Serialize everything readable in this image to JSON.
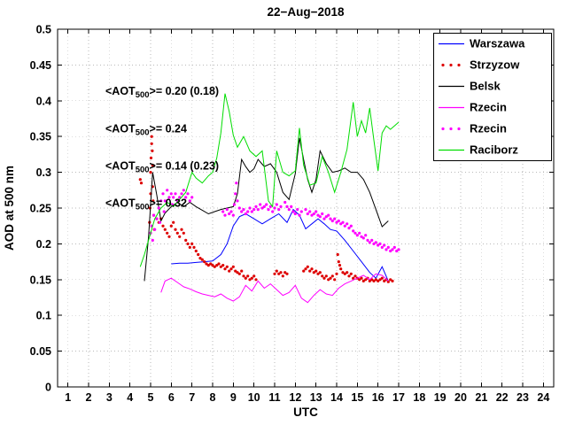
{
  "chart_data": {
    "type": "line",
    "title": "22−Aug−2018",
    "xlabel": "UTC",
    "ylabel": "AOD at 500 nm",
    "xlim": [
      0.5,
      24.5
    ],
    "ylim": [
      0,
      0.5
    ],
    "grid": true,
    "legend_position": "top-right",
    "xticks": [
      1,
      2,
      3,
      4,
      5,
      6,
      7,
      8,
      9,
      10,
      11,
      12,
      13,
      14,
      15,
      16,
      17,
      18,
      19,
      20,
      21,
      22,
      23,
      24
    ],
    "yticks": [
      0,
      0.05,
      0.1,
      0.15,
      0.2,
      0.25,
      0.3,
      0.35,
      0.4,
      0.45,
      0.5
    ],
    "ytick_labels": [
      "0",
      "0.05",
      "0.1",
      "0.15",
      "0.2",
      "0.25",
      "0.3",
      "0.35",
      "0.4",
      "0.45",
      "0.5"
    ],
    "series": [
      {
        "id": "warszawa",
        "name": "Warszawa",
        "mode": "line",
        "color": "#0000ff",
        "x": [
          6.0,
          6.4,
          6.8,
          7.2,
          7.6,
          8.0,
          8.4,
          8.7,
          9.0,
          9.3,
          9.6,
          10.0,
          10.4,
          10.8,
          11.2,
          11.6,
          11.9,
          12.2,
          12.5,
          12.8,
          13.1,
          13.4,
          13.7,
          14.0,
          14.4,
          14.8,
          15.2,
          15.6,
          15.9,
          16.2,
          16.5
        ],
        "y": [
          0.172,
          0.173,
          0.173,
          0.174,
          0.175,
          0.176,
          0.185,
          0.2,
          0.225,
          0.238,
          0.242,
          0.235,
          0.228,
          0.235,
          0.242,
          0.23,
          0.248,
          0.24,
          0.221,
          0.228,
          0.235,
          0.228,
          0.22,
          0.218,
          0.205,
          0.19,
          0.175,
          0.16,
          0.152,
          0.168,
          0.148
        ]
      },
      {
        "id": "strzyzow",
        "name": "Strzyzow",
        "mode": "scatter",
        "color": "#dd0000",
        "x": [
          4.5,
          4.55,
          4.95,
          4.97,
          5.0,
          5.0,
          5.02,
          5.05,
          5.05,
          5.08,
          5.1,
          5.1,
          5.12,
          5.15,
          5.18,
          5.3,
          5.4,
          5.5,
          5.6,
          5.7,
          5.8,
          5.9,
          6.0,
          6.1,
          6.2,
          6.3,
          6.4,
          6.5,
          6.6,
          6.7,
          6.8,
          6.9,
          7.0,
          7.1,
          7.2,
          7.3,
          7.4,
          7.5,
          7.6,
          7.7,
          7.8,
          7.9,
          8.0,
          8.1,
          8.2,
          8.3,
          8.4,
          8.5,
          8.6,
          8.7,
          8.8,
          8.9,
          9.0,
          9.1,
          9.2,
          9.3,
          9.4,
          9.5,
          9.6,
          9.7,
          9.8,
          9.9,
          10.0,
          10.1,
          11.0,
          11.1,
          11.2,
          11.3,
          11.4,
          11.5,
          11.6,
          12.4,
          12.5,
          12.6,
          12.7,
          12.8,
          12.9,
          13.0,
          13.1,
          13.2,
          13.3,
          13.4,
          13.5,
          13.6,
          13.7,
          13.8,
          13.9,
          14.0,
          14.05,
          14.1,
          14.15,
          14.2,
          14.3,
          14.4,
          14.5,
          14.6,
          14.7,
          14.8,
          14.9,
          15.0,
          15.1,
          15.2,
          15.3,
          15.4,
          15.5,
          15.6,
          15.7,
          15.8,
          15.9,
          16.0,
          16.1,
          16.2,
          16.3,
          16.4,
          16.5,
          16.6,
          16.7
        ],
        "y": [
          0.29,
          0.285,
          0.23,
          0.25,
          0.27,
          0.3,
          0.32,
          0.34,
          0.35,
          0.33,
          0.31,
          0.28,
          0.26,
          0.24,
          0.22,
          0.235,
          0.23,
          0.235,
          0.225,
          0.22,
          0.215,
          0.21,
          0.225,
          0.23,
          0.22,
          0.215,
          0.21,
          0.22,
          0.215,
          0.205,
          0.2,
          0.195,
          0.2,
          0.195,
          0.19,
          0.185,
          0.18,
          0.178,
          0.175,
          0.172,
          0.17,
          0.172,
          0.17,
          0.168,
          0.17,
          0.172,
          0.168,
          0.17,
          0.165,
          0.168,
          0.162,
          0.165,
          0.168,
          0.162,
          0.16,
          0.158,
          0.162,
          0.155,
          0.152,
          0.155,
          0.15,
          0.152,
          0.155,
          0.15,
          0.158,
          0.162,
          0.158,
          0.16,
          0.155,
          0.16,
          0.158,
          0.162,
          0.165,
          0.168,
          0.162,
          0.165,
          0.16,
          0.162,
          0.158,
          0.16,
          0.155,
          0.152,
          0.155,
          0.15,
          0.152,
          0.155,
          0.15,
          0.158,
          0.185,
          0.175,
          0.17,
          0.165,
          0.16,
          0.158,
          0.16,
          0.155,
          0.158,
          0.152,
          0.155,
          0.152,
          0.15,
          0.152,
          0.148,
          0.15,
          0.152,
          0.148,
          0.15,
          0.148,
          0.15,
          0.148,
          0.15,
          0.152,
          0.148,
          0.15,
          0.147,
          0.15,
          0.148
        ]
      },
      {
        "id": "belsk",
        "name": "Belsk",
        "mode": "line",
        "color": "#000000",
        "x": [
          4.7,
          4.9,
          5.1,
          5.3,
          5.5,
          5.7,
          6.0,
          6.3,
          6.6,
          6.9,
          7.2,
          7.5,
          7.8,
          8.1,
          8.4,
          8.7,
          9.0,
          9.2,
          9.4,
          9.6,
          9.8,
          10.0,
          10.2,
          10.5,
          10.8,
          11.1,
          11.4,
          11.7,
          12.0,
          12.2,
          12.4,
          12.6,
          12.8,
          13.0,
          13.2,
          13.5,
          13.8,
          14.1,
          14.4,
          14.7,
          15.0,
          15.3,
          15.6,
          15.9,
          16.2,
          16.5
        ],
        "y": [
          0.148,
          0.21,
          0.3,
          0.268,
          0.232,
          0.243,
          0.252,
          0.258,
          0.252,
          0.258,
          0.252,
          0.247,
          0.242,
          0.245,
          0.248,
          0.25,
          0.252,
          0.27,
          0.318,
          0.308,
          0.3,
          0.305,
          0.318,
          0.308,
          0.312,
          0.3,
          0.272,
          0.262,
          0.298,
          0.348,
          0.318,
          0.29,
          0.272,
          0.29,
          0.33,
          0.312,
          0.3,
          0.302,
          0.306,
          0.3,
          0.3,
          0.29,
          0.272,
          0.248,
          0.224,
          0.232
        ]
      },
      {
        "id": "rzecin-line",
        "name": "Rzecin",
        "mode": "line",
        "color": "#ff00ff",
        "x": [
          5.5,
          5.7,
          6.0,
          6.3,
          6.6,
          6.9,
          7.2,
          7.5,
          7.8,
          8.1,
          8.4,
          8.7,
          9.0,
          9.3,
          9.6,
          9.9,
          10.2,
          10.5,
          10.8,
          11.1,
          11.4,
          11.7,
          12.0,
          12.3,
          12.6,
          12.9,
          13.2,
          13.5,
          13.8,
          14.1,
          14.4,
          14.7,
          15.0,
          15.3,
          15.6,
          15.9,
          16.2,
          16.5
        ],
        "y": [
          0.132,
          0.148,
          0.152,
          0.146,
          0.14,
          0.137,
          0.133,
          0.13,
          0.128,
          0.126,
          0.13,
          0.124,
          0.12,
          0.126,
          0.142,
          0.134,
          0.148,
          0.138,
          0.144,
          0.136,
          0.128,
          0.132,
          0.142,
          0.124,
          0.118,
          0.128,
          0.136,
          0.13,
          0.128,
          0.138,
          0.144,
          0.148,
          0.152,
          0.156,
          0.15,
          0.158,
          0.156,
          0.148
        ]
      },
      {
        "id": "rzecin-dots",
        "name": "Rzecin",
        "mode": "scatter",
        "color": "#ff00ff",
        "x": [
          5.0,
          5.05,
          5.1,
          5.15,
          5.2,
          5.3,
          5.4,
          5.45,
          5.5,
          5.6,
          5.65,
          5.7,
          5.8,
          5.9,
          6.0,
          6.05,
          6.1,
          6.2,
          6.3,
          6.4,
          6.5,
          6.6,
          6.7,
          6.8,
          6.9,
          7.0,
          8.5,
          8.6,
          8.7,
          8.8,
          8.9,
          9.0,
          9.05,
          9.1,
          9.15,
          9.2,
          9.3,
          9.4,
          9.5,
          9.6,
          9.7,
          9.8,
          9.9,
          10.0,
          10.1,
          10.2,
          10.3,
          10.4,
          10.5,
          10.6,
          10.7,
          10.8,
          10.9,
          11.0,
          11.1,
          11.2,
          11.3,
          11.5,
          11.6,
          11.7,
          11.8,
          11.9,
          12.0,
          12.1,
          12.2,
          12.3,
          12.5,
          12.6,
          12.7,
          12.8,
          12.9,
          13.0,
          13.1,
          13.2,
          13.3,
          13.4,
          13.5,
          13.6,
          13.7,
          13.8,
          13.9,
          14.0,
          14.1,
          14.2,
          14.3,
          14.4,
          14.5,
          14.6,
          14.7,
          14.8,
          14.9,
          15.0,
          15.1,
          15.2,
          15.3,
          15.4,
          15.5,
          15.6,
          15.7,
          15.8,
          15.9,
          16.0,
          16.1,
          16.2,
          16.3,
          16.4,
          16.5,
          16.6,
          16.7,
          16.8,
          16.9,
          17.0
        ],
        "y": [
          0.215,
          0.225,
          0.205,
          0.24,
          0.22,
          0.235,
          0.25,
          0.23,
          0.26,
          0.27,
          0.245,
          0.26,
          0.275,
          0.265,
          0.27,
          0.255,
          0.265,
          0.27,
          0.26,
          0.265,
          0.27,
          0.275,
          0.265,
          0.27,
          0.26,
          0.265,
          0.245,
          0.24,
          0.248,
          0.242,
          0.245,
          0.24,
          0.255,
          0.27,
          0.285,
          0.26,
          0.25,
          0.245,
          0.248,
          0.242,
          0.245,
          0.25,
          0.245,
          0.248,
          0.252,
          0.248,
          0.255,
          0.25,
          0.252,
          0.255,
          0.248,
          0.252,
          0.245,
          0.25,
          0.255,
          0.248,
          0.252,
          0.258,
          0.252,
          0.248,
          0.252,
          0.245,
          0.242,
          0.248,
          0.24,
          0.245,
          0.248,
          0.242,
          0.245,
          0.24,
          0.242,
          0.245,
          0.24,
          0.238,
          0.242,
          0.235,
          0.238,
          0.24,
          0.235,
          0.232,
          0.235,
          0.23,
          0.232,
          0.228,
          0.23,
          0.225,
          0.228,
          0.222,
          0.225,
          0.218,
          0.215,
          0.212,
          0.215,
          0.21,
          0.208,
          0.212,
          0.205,
          0.202,
          0.205,
          0.2,
          0.202,
          0.198,
          0.2,
          0.195,
          0.198,
          0.192,
          0.195,
          0.19,
          0.192,
          0.195,
          0.19,
          0.192
        ]
      },
      {
        "id": "raciborz",
        "name": "Raciborz",
        "mode": "line",
        "color": "#00dd00",
        "x": [
          4.5,
          4.7,
          5.0,
          5.2,
          5.5,
          5.8,
          6.1,
          6.4,
          6.7,
          7.0,
          7.2,
          7.5,
          7.8,
          8.0,
          8.2,
          8.4,
          8.6,
          8.8,
          9.0,
          9.2,
          9.5,
          9.8,
          10.1,
          10.4,
          10.7,
          10.9,
          11.1,
          11.4,
          11.7,
          12.0,
          12.2,
          12.4,
          12.7,
          13.0,
          13.3,
          13.6,
          13.9,
          14.2,
          14.5,
          14.8,
          15.0,
          15.2,
          15.4,
          15.6,
          15.8,
          16.0,
          16.2,
          16.4,
          16.6,
          16.8,
          17.0
        ],
        "y": [
          0.168,
          0.185,
          0.215,
          0.235,
          0.25,
          0.258,
          0.252,
          0.262,
          0.272,
          0.3,
          0.292,
          0.285,
          0.295,
          0.3,
          0.32,
          0.355,
          0.41,
          0.385,
          0.352,
          0.335,
          0.35,
          0.33,
          0.322,
          0.33,
          0.26,
          0.252,
          0.33,
          0.3,
          0.295,
          0.302,
          0.362,
          0.31,
          0.282,
          0.285,
          0.322,
          0.3,
          0.272,
          0.3,
          0.332,
          0.398,
          0.35,
          0.372,
          0.355,
          0.39,
          0.345,
          0.302,
          0.355,
          0.365,
          0.36,
          0.365,
          0.37
        ]
      }
    ],
    "annotations": [
      {
        "x": 2.8,
        "y": 0.41,
        "prefix": "<AOT",
        "sub": "500",
        "suffix": ">= 0.20 (0.18)",
        "color": "#ff0000"
      },
      {
        "x": 2.8,
        "y": 0.357,
        "prefix": "<AOT",
        "sub": "500",
        "suffix": ">= 0.24",
        "color": "#000000"
      },
      {
        "x": 2.8,
        "y": 0.305,
        "prefix": "<AOT",
        "sub": "500",
        "suffix": ">= 0.14 (0.23)",
        "color": "#ff00ff"
      },
      {
        "x": 2.8,
        "y": 0.253,
        "prefix": "<AOT",
        "sub": "500",
        "suffix": ">= 0.32",
        "color": "#00cc00"
      }
    ]
  },
  "legend": {
    "position": "top-right",
    "entries": [
      {
        "id": "warszawa",
        "label": "Warszawa",
        "color": "#0000ff",
        "style": "line"
      },
      {
        "id": "strzyzow",
        "label": "Strzyzow",
        "color": "#dd0000",
        "style": "dots"
      },
      {
        "id": "belsk",
        "label": "Belsk",
        "color": "#000000",
        "style": "line"
      },
      {
        "id": "rzecin-line",
        "label": "Rzecin",
        "color": "#ff00ff",
        "style": "line"
      },
      {
        "id": "rzecin-dots",
        "label": "Rzecin",
        "color": "#ff00ff",
        "style": "dots"
      },
      {
        "id": "raciborz",
        "label": "Raciborz",
        "color": "#00dd00",
        "style": "line"
      }
    ]
  }
}
